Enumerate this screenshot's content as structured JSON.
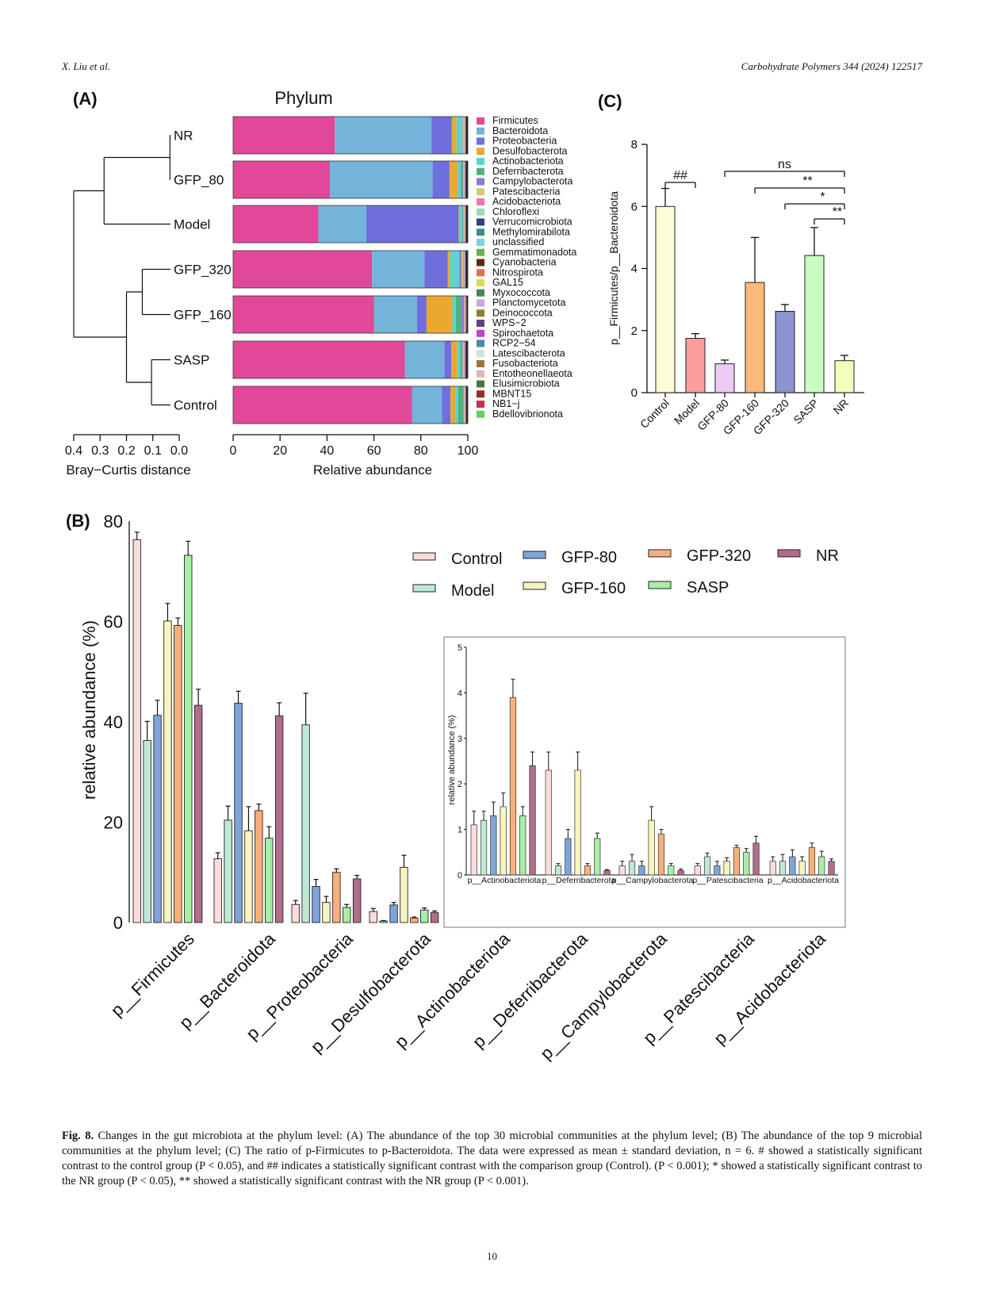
{
  "header": {
    "left": "X. Liu et al.",
    "right": "Carbohydrate Polymers 344 (2024) 122517"
  },
  "page_number": "10",
  "caption": {
    "label": "Fig. 8.",
    "text": "Changes in the gut microbiota at the phylum level: (A) The abundance of the top 30 microbial communities at the phylum level; (B) The abundance of the top 9 microbial communities at the phylum level; (C) The ratio of p-Firmicutes to p-Bacteroidota. The data were expressed as mean ± standard deviation, n = 6. # showed a statistically significant contrast to the control group (P < 0.05), and ## indicates a statistically significant contrast with the comparison group (Control). (P < 0.001); * showed a statistically significant contrast to the NR group (P < 0.05), ** showed a statistically significant contrast with the NR group (P < 0.001)."
  },
  "chart_data": [
    {
      "panel": "(A)",
      "type": "bar",
      "orientation": "horizontal-stacked",
      "title": "Phylum",
      "xlabel": "Relative abundance",
      "xlim": [
        0,
        100
      ],
      "xticks": [
        "0",
        "20",
        "40",
        "60",
        "80",
        "100"
      ],
      "dendrogram_xlabel": "Bray−Curtis distance",
      "dendrogram_ticks": [
        "0.4",
        "0.3",
        "0.2",
        "0.1",
        "0.0"
      ],
      "categories": [
        "NR",
        "GFP_80",
        "Model",
        "GFP_320",
        "GFP_160",
        "SASP",
        "Control"
      ],
      "legend": [
        "Firmicutes",
        "Bacteroidota",
        "Proteobacteria",
        "Desulfobacterota",
        "Actinobacteriota",
        "Deferribacterota",
        "Campylobacterota",
        "Patescibacteria",
        "Acidobacteriota",
        "Chloroflexi",
        "Verrucomicrobiota",
        "Methylomirabilota",
        "unclassified",
        "Gemmatimonadota",
        "Cyanobacteria",
        "Nitrospirota",
        "GAL15",
        "Myxococcota",
        "Planctomycetota",
        "Deinococcota",
        "WPS−2",
        "Spirochaetota",
        "RCP2−54",
        "Latescibacterota",
        "Fusobacteriota",
        "Entotheonellaeota",
        "Elusimicrobiota",
        "MBNT15",
        "NB1−j",
        "Bdellovibrionota"
      ],
      "colors": [
        "#E2489A",
        "#74B3DA",
        "#6E6FDC",
        "#E8A92E",
        "#5ED3D0",
        "#4DB37B",
        "#8C7BD6",
        "#D9C777",
        "#EE77A6",
        "#9ADBB4",
        "#2E3F86",
        "#3E8F86",
        "#7BD1E5",
        "#66B348",
        "#5A2A12",
        "#E0704C",
        "#D6D85A",
        "#3E8A57",
        "#C6A6DE",
        "#8E7E2A",
        "#6A3E86",
        "#C143C6",
        "#4A8AA6",
        "#C6E6D6",
        "#A56F3A",
        "#E0B4B8",
        "#4E7A30",
        "#9E2A2A",
        "#C9304E",
        "#62D260"
      ],
      "series": [
        {
          "name": "Firmicutes",
          "values": [
            43.3,
            41.3,
            36.3,
            59.2,
            60.1,
            73.2,
            76.3
          ]
        },
        {
          "name": "Bacteroidota",
          "values": [
            41.2,
            43.7,
            20.4,
            22.3,
            18.3,
            16.8,
            12.7
          ]
        },
        {
          "name": "Proteobacteria",
          "values": [
            8.7,
            7.2,
            39.4,
            10.0,
            4.0,
            3.0,
            3.6
          ]
        },
        {
          "name": "Desulfobacterota",
          "values": [
            2.0,
            3.5,
            0.3,
            0.9,
            11.0,
            2.5,
            2.2
          ]
        },
        {
          "name": "Actinobacteriota",
          "values": [
            2.4,
            1.3,
            1.2,
            3.9,
            1.5,
            1.3,
            1.1
          ]
        },
        {
          "name": "Deferribacterota",
          "values": [
            0.1,
            0.8,
            0.2,
            0.2,
            2.3,
            0.8,
            2.3
          ]
        },
        {
          "name": "Campylobacterota",
          "values": [
            0.1,
            0.2,
            0.3,
            0.9,
            1.2,
            0.2,
            0.2
          ]
        },
        {
          "name": "Patescibacteria",
          "values": [
            0.7,
            0.2,
            0.4,
            0.6,
            0.3,
            0.5,
            0.2
          ]
        },
        {
          "name": "Acidobacteriota",
          "values": [
            0.3,
            0.4,
            0.3,
            0.6,
            0.3,
            0.4,
            0.3
          ]
        },
        {
          "name": "Chloroflexi",
          "values": [
            0.2,
            0.3,
            0.2,
            0.3,
            0.2,
            0.2,
            0.2
          ]
        },
        {
          "name": "Verrucomicrobiota",
          "values": [
            0.2,
            0.2,
            0.2,
            0.2,
            0.2,
            0.2,
            0.2
          ]
        }
      ]
    },
    {
      "panel": "(B)",
      "type": "bar",
      "ylabel": "relative abundance (%)",
      "ylim": [
        0,
        80
      ],
      "yticks": [
        "0",
        "20",
        "40",
        "60",
        "80"
      ],
      "categories": [
        "p__Firmicutes",
        "p__Bacteroidota",
        "p__Proteobacteria",
        "p__Desulfobacterota",
        "p__Actinobacteriota",
        "p__Deferribacterota",
        "p__Campylobacterota",
        "p__Patescibacteria",
        "p__Acidobacteriota"
      ],
      "legend_row1": [
        "Control",
        "GFP-80",
        "GFP-320",
        "NR"
      ],
      "legend_row2": [
        "Model",
        "GFP-160",
        "SASP"
      ],
      "series": [
        {
          "name": "Control",
          "color": "#FCDCDA",
          "values": [
            76.3,
            12.7,
            3.6,
            2.2,
            1.1,
            2.3,
            0.2,
            0.2,
            0.3
          ],
          "errors": [
            1.5,
            1.2,
            0.8,
            0.6,
            0.3,
            0.4,
            0.1,
            0.05,
            0.1
          ]
        },
        {
          "name": "Model",
          "color": "#BFE8D6",
          "values": [
            36.3,
            20.4,
            39.4,
            0.3,
            1.2,
            0.2,
            0.3,
            0.4,
            0.3
          ],
          "errors": [
            3.8,
            2.8,
            6.3,
            0.1,
            0.2,
            0.05,
            0.15,
            0.08,
            0.15
          ]
        },
        {
          "name": "GFP-80",
          "color": "#7EA4DA",
          "values": [
            41.3,
            43.7,
            7.2,
            3.5,
            1.3,
            0.8,
            0.2,
            0.2,
            0.4
          ],
          "errors": [
            3.0,
            2.4,
            1.4,
            0.5,
            0.3,
            0.2,
            0.1,
            0.1,
            0.15
          ]
        },
        {
          "name": "GFP-160",
          "color": "#F7F5BE",
          "values": [
            60.1,
            18.3,
            4.0,
            11.0,
            1.5,
            2.3,
            1.2,
            0.3,
            0.3
          ],
          "errors": [
            3.5,
            4.8,
            1.2,
            2.4,
            0.3,
            0.4,
            0.3,
            0.08,
            0.1
          ]
        },
        {
          "name": "GFP-320",
          "color": "#F8B07A",
          "values": [
            59.2,
            22.3,
            10.0,
            0.9,
            3.9,
            0.2,
            0.9,
            0.6,
            0.6
          ],
          "errors": [
            1.5,
            1.3,
            0.7,
            0.2,
            0.4,
            0.05,
            0.1,
            0.05,
            0.1
          ]
        },
        {
          "name": "SASP",
          "color": "#A8EFA4",
          "values": [
            73.2,
            16.8,
            3.0,
            2.5,
            1.3,
            0.8,
            0.2,
            0.5,
            0.4
          ],
          "errors": [
            2.8,
            2.3,
            0.6,
            0.4,
            0.2,
            0.12,
            0.05,
            0.08,
            0.12
          ]
        },
        {
          "name": "NR",
          "color": "#B26C8C",
          "values": [
            43.3,
            41.2,
            8.7,
            2.0,
            2.4,
            0.1,
            0.1,
            0.7,
            0.3
          ],
          "errors": [
            3.2,
            2.6,
            0.7,
            0.3,
            0.3,
            0.02,
            0.03,
            0.15,
            0.05
          ]
        }
      ],
      "inset": {
        "ylabel": "relative abundance (%)",
        "ylim": [
          0,
          5
        ],
        "yticks": [
          "0",
          "1",
          "2",
          "3",
          "4",
          "5"
        ],
        "categories": [
          "p__Actinobacteriota",
          "p__Deferribacterota",
          "p__Campylobacterota",
          "p__Patescibacteria",
          "p__Acidobacteriota"
        ]
      }
    },
    {
      "panel": "(C)",
      "type": "bar",
      "ylabel": "p__Firmicutes/p__Bacteroidota",
      "ylim": [
        0,
        8
      ],
      "yticks": [
        "0",
        "2",
        "4",
        "6",
        "8"
      ],
      "categories": [
        "Control",
        "Model",
        "GFP-80",
        "GFP-160",
        "GFP-320",
        "SASP",
        "NR"
      ],
      "values": [
        6.0,
        1.75,
        0.93,
        3.55,
        2.62,
        4.42,
        1.03
      ],
      "errors": [
        0.58,
        0.15,
        0.12,
        1.45,
        0.22,
        0.9,
        0.17
      ],
      "colors": [
        "#FDFCD8",
        "#FE9E9C",
        "#EDCBF7",
        "#FDB97A",
        "#8D93CF",
        "#C9FCC3",
        "#F4FDBB"
      ],
      "annotations": [
        {
          "label": "##",
          "from": "Control",
          "to": "Model"
        },
        {
          "label": "ns",
          "from": "GFP-80",
          "to": "NR"
        },
        {
          "label": "**",
          "from": "GFP-160",
          "to": "NR"
        },
        {
          "label": "*",
          "from": "GFP-320",
          "to": "NR"
        },
        {
          "label": "**",
          "from": "SASP",
          "to": "NR"
        }
      ]
    }
  ]
}
